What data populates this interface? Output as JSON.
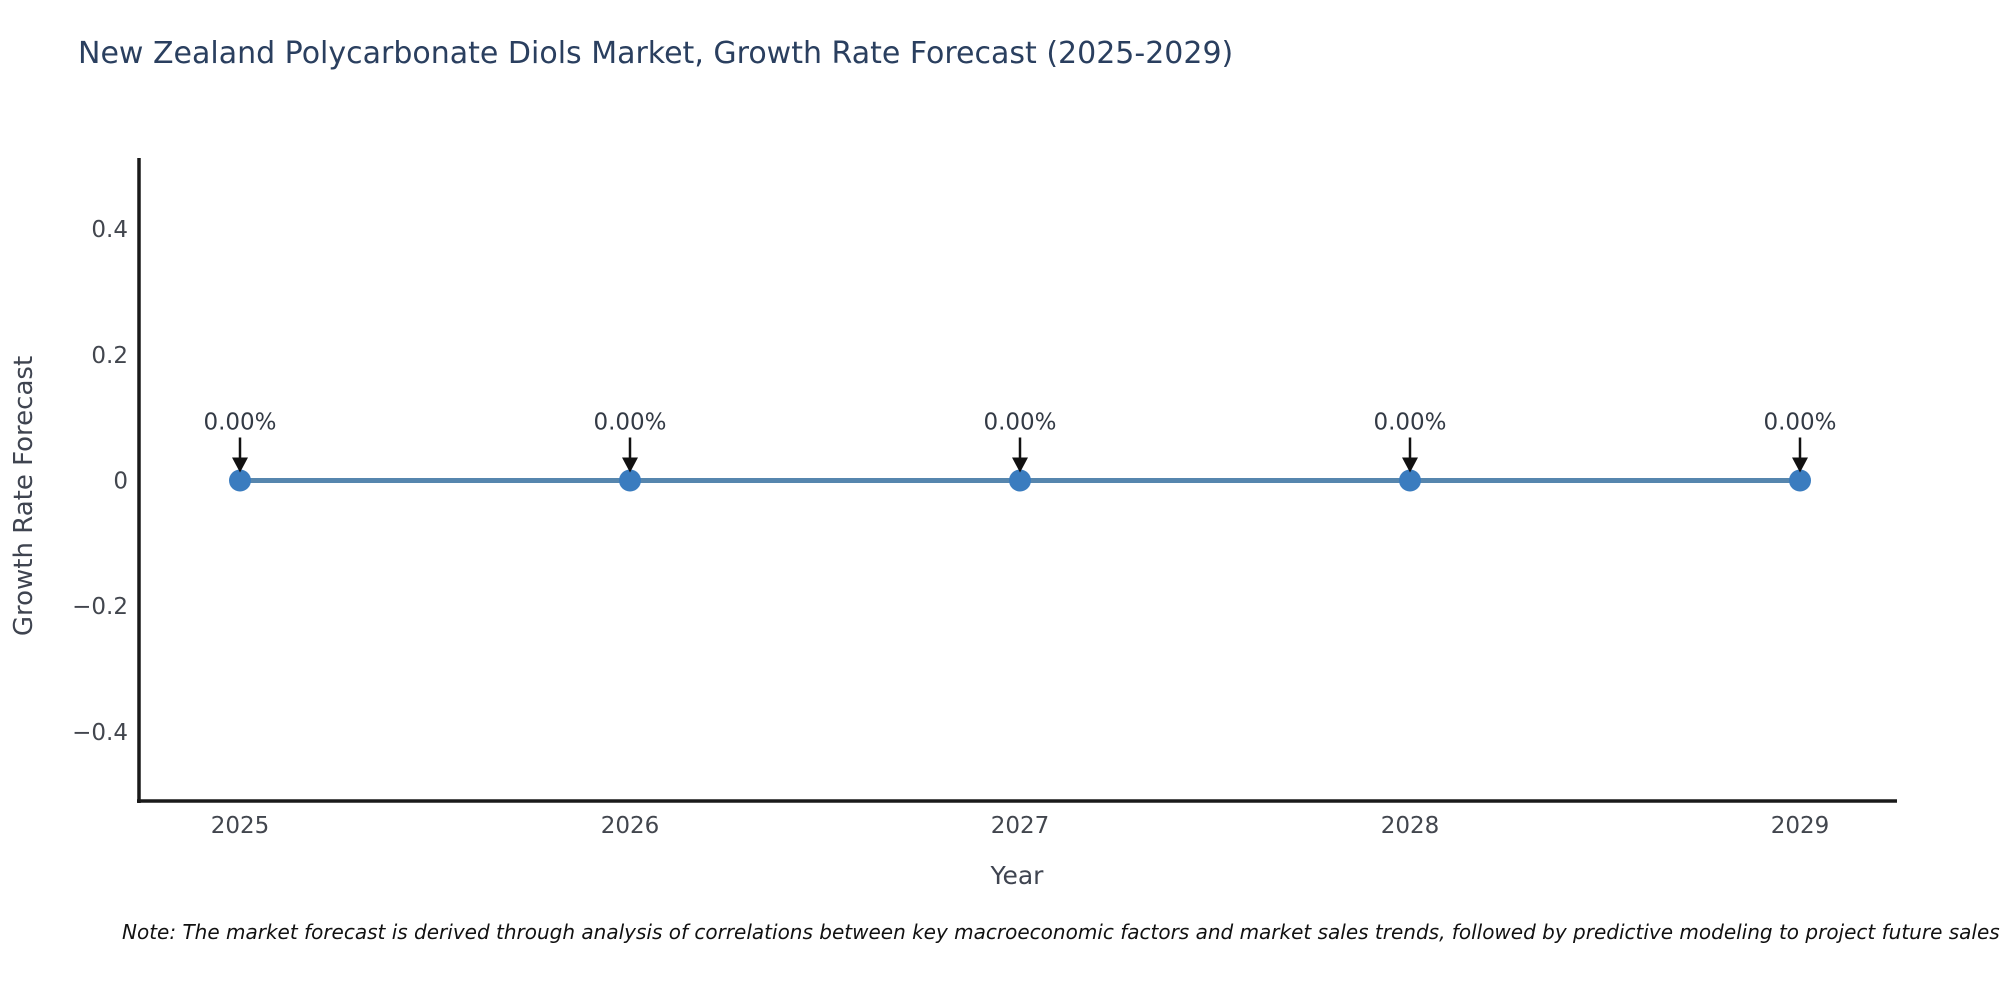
{
  "chart_data": {
    "type": "line",
    "title": "New Zealand Polycarbonate Diols Market, Growth Rate Forecast (2025-2029)",
    "xlabel": "Year",
    "ylabel": "Growth Rate Forecast",
    "x": [
      "2025",
      "2026",
      "2027",
      "2028",
      "2029"
    ],
    "series": [
      {
        "name": "Growth Rate Forecast",
        "values": [
          0,
          0,
          0,
          0,
          0
        ]
      }
    ],
    "point_labels": [
      "0.00%",
      "0.00%",
      "0.00%",
      "0.00%",
      "0.00%"
    ],
    "y_ticks": [
      0.4,
      0.2,
      0,
      -0.2,
      -0.4
    ],
    "ylim": [
      -0.51,
      0.51
    ],
    "grid": false,
    "legend": "none",
    "line_color": "#5686ae",
    "marker_color": "#3a7cbf",
    "arrow_color": "#111111",
    "axis_color": "#1a1a1a"
  },
  "note": "Note: The market forecast is derived through analysis of correlations between key macroeconomic factors and market sales trends, followed by predictive modeling to project future sales.",
  "colors": {
    "title": "#2a3f5f",
    "tick": "#42464e",
    "axis_label": "#3f4450",
    "annotation": "#333a45"
  }
}
